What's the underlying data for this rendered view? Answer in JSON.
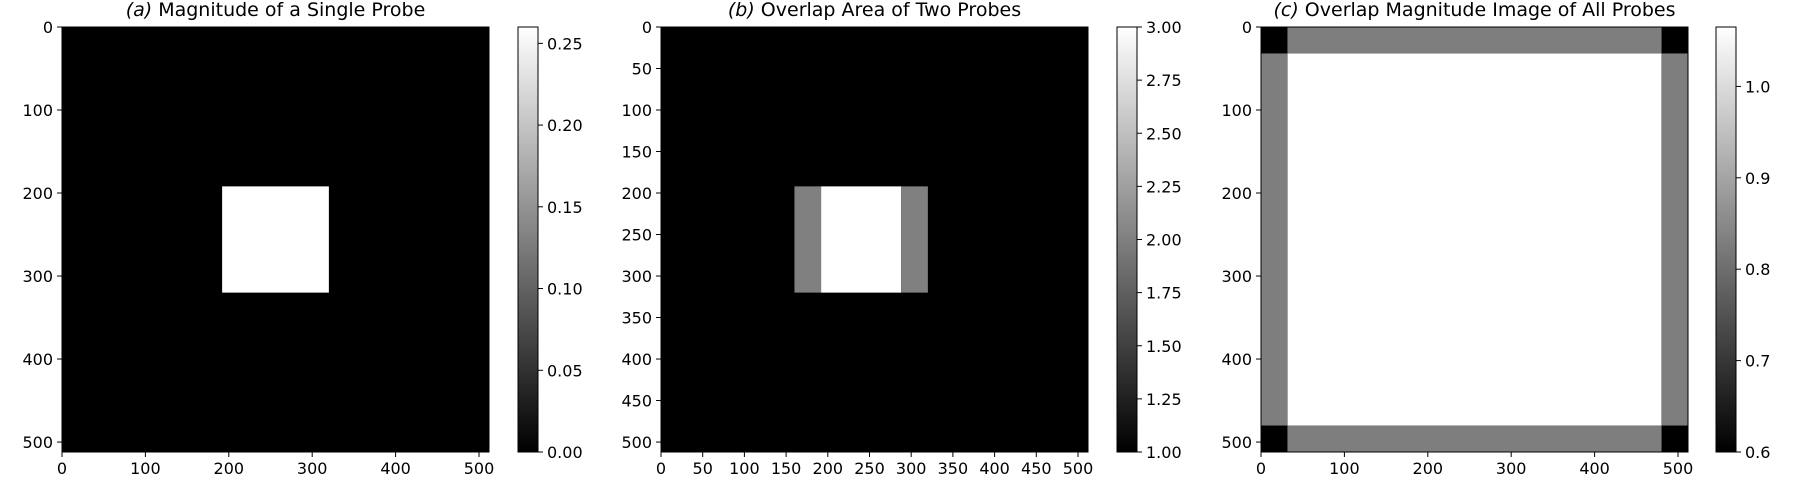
{
  "chart_data": [
    {
      "type": "heatmap",
      "title_prefix": "(a)",
      "title_rest": "Magnitude of a Single Probe",
      "extent": [
        0,
        512
      ],
      "xticks": [
        0,
        100,
        200,
        300,
        400,
        500
      ],
      "yticks": [
        0,
        100,
        200,
        300,
        400,
        500
      ],
      "grid": false,
      "colormap": "gray",
      "background_value": 0.0,
      "regions": [
        {
          "x0": 192,
          "x1": 320,
          "y0": 192,
          "y1": 320,
          "value": 0.26
        }
      ],
      "colorbar": {
        "min": 0.0,
        "max": 0.26,
        "ticks": [
          "0.00",
          "0.05",
          "0.10",
          "0.15",
          "0.20",
          "0.25"
        ]
      }
    },
    {
      "type": "heatmap",
      "title_prefix": "(b)",
      "title_rest": "Overlap Area of Two Probes",
      "extent": [
        0,
        512
      ],
      "xticks": [
        0,
        50,
        100,
        150,
        200,
        250,
        300,
        350,
        400,
        450,
        500
      ],
      "yticks": [
        0,
        50,
        100,
        150,
        200,
        250,
        300,
        350,
        400,
        450,
        500
      ],
      "grid": false,
      "colormap": "gray",
      "background_value": 1.0,
      "regions": [
        {
          "x0": 160,
          "x1": 192,
          "y0": 192,
          "y1": 320,
          "value": 2.0
        },
        {
          "x0": 192,
          "x1": 288,
          "y0": 192,
          "y1": 320,
          "value": 3.0
        },
        {
          "x0": 288,
          "x1": 320,
          "y0": 192,
          "y1": 320,
          "value": 2.0
        }
      ],
      "colorbar": {
        "min": 1.0,
        "max": 3.0,
        "ticks": [
          "1.00",
          "1.25",
          "1.50",
          "1.75",
          "2.00",
          "2.25",
          "2.50",
          "2.75",
          "3.00"
        ]
      }
    },
    {
      "type": "heatmap",
      "title_prefix": "(c)",
      "title_rest": "Overlap Magnitude Image of All Probes",
      "extent": [
        0,
        512
      ],
      "xticks": [
        0,
        100,
        200,
        300,
        400,
        500
      ],
      "yticks": [
        0,
        100,
        200,
        300,
        400,
        500
      ],
      "grid": false,
      "colormap": "gray",
      "background_value": 1.065,
      "regions": [
        {
          "x0": 0,
          "x1": 32,
          "y0": 0,
          "y1": 32,
          "value": 0.6
        },
        {
          "x0": 480,
          "x1": 512,
          "y0": 0,
          "y1": 32,
          "value": 0.6
        },
        {
          "x0": 0,
          "x1": 32,
          "y0": 480,
          "y1": 512,
          "value": 0.6
        },
        {
          "x0": 480,
          "x1": 512,
          "y0": 480,
          "y1": 512,
          "value": 0.6
        },
        {
          "x0": 32,
          "x1": 480,
          "y0": 0,
          "y1": 32,
          "value": 0.83
        },
        {
          "x0": 32,
          "x1": 480,
          "y0": 480,
          "y1": 512,
          "value": 0.83
        },
        {
          "x0": 0,
          "x1": 32,
          "y0": 32,
          "y1": 480,
          "value": 0.83
        },
        {
          "x0": 480,
          "x1": 512,
          "y0": 32,
          "y1": 480,
          "value": 0.83
        }
      ],
      "colorbar": {
        "min": 0.6,
        "max": 1.065,
        "ticks": [
          "0.6",
          "0.7",
          "0.8",
          "0.9",
          "1.0"
        ]
      }
    }
  ]
}
